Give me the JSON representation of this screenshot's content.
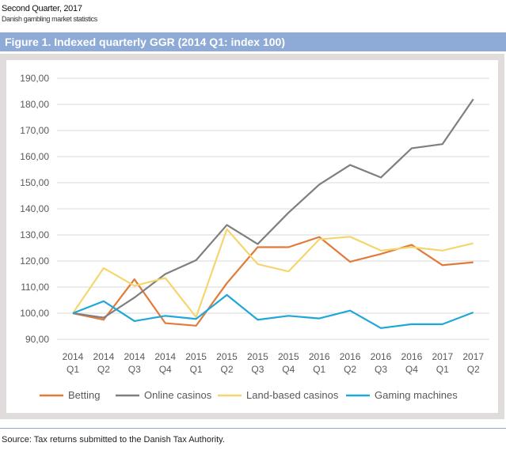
{
  "header": {
    "title": "Second Quarter, 2017",
    "subtitle": "Danish gambling market statistics"
  },
  "figure_title": "Figure 1. Indexed quarterly GGR (2014 Q1: index 100)",
  "source": "Source: Tax returns submitted to the Danish Tax Authority.",
  "chart_data": {
    "type": "line",
    "title": "",
    "xlabel": "",
    "ylabel": "",
    "ylim": [
      90,
      190
    ],
    "yticks": [
      "90,00",
      "100,00",
      "110,00",
      "120,00",
      "130,00",
      "140,00",
      "150,00",
      "160,00",
      "170,00",
      "180,00",
      "190,00"
    ],
    "categories": [
      [
        "2014",
        "Q1"
      ],
      [
        "2014",
        "Q2"
      ],
      [
        "2014",
        "Q3"
      ],
      [
        "2014",
        "Q4"
      ],
      [
        "2015",
        "Q1"
      ],
      [
        "2015",
        "Q2"
      ],
      [
        "2015",
        "Q3"
      ],
      [
        "2015",
        "Q4"
      ],
      [
        "2016",
        "Q1"
      ],
      [
        "2016",
        "Q2"
      ],
      [
        "2016",
        "Q3"
      ],
      [
        "2016",
        "Q4"
      ],
      [
        "2017",
        "Q1"
      ],
      [
        "2017",
        "Q2"
      ]
    ],
    "grid": true,
    "legend_position": "bottom",
    "series": [
      {
        "name": "Betting",
        "color": "#e07b39",
        "values": [
          100,
          97.5,
          113,
          96.2,
          95.2,
          111.5,
          125.3,
          125.3,
          129.2,
          119.7,
          122.7,
          126.2,
          118.4,
          119.5
        ]
      },
      {
        "name": "Online casinos",
        "color": "#7f7f7f",
        "values": [
          100,
          98.3,
          106,
          115,
          120.3,
          133.8,
          126.5,
          138.5,
          149.3,
          156.8,
          152,
          163.2,
          164.8,
          182
        ]
      },
      {
        "name": "Land-based casinos",
        "color": "#f5d66e",
        "values": [
          100,
          117.3,
          110.5,
          113.5,
          98.5,
          132.2,
          118.8,
          116,
          128.3,
          129.3,
          124,
          125.3,
          124,
          126.8
        ]
      },
      {
        "name": "Gaming machines",
        "color": "#1fa7d9",
        "values": [
          100,
          104.6,
          97,
          99,
          97.8,
          107,
          97.5,
          99,
          98,
          101,
          94.3,
          95.8,
          95.8,
          100.3
        ]
      }
    ]
  }
}
